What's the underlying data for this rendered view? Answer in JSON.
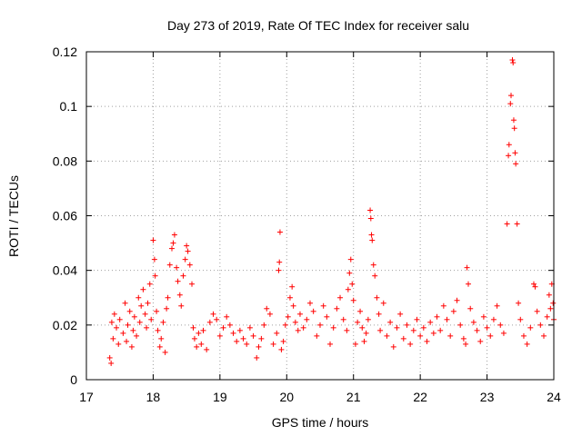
{
  "chart_data": {
    "type": "scatter",
    "title": "Day 273 of 2019, Rate Of TEC Index for receiver salu",
    "xlabel": "GPS time / hours",
    "ylabel": "ROTI / TECUs",
    "xlim": [
      17,
      24
    ],
    "ylim": [
      0,
      0.12
    ],
    "xticks": [
      17,
      18,
      19,
      20,
      21,
      22,
      23,
      24
    ],
    "yticks": [
      0,
      0.02,
      0.04,
      0.06,
      0.08,
      0.1,
      0.12
    ],
    "xtick_labels": [
      "17",
      "18",
      "19",
      "20",
      "21",
      "22",
      "23",
      "24"
    ],
    "ytick_labels": [
      "0",
      "0.02",
      "0.04",
      "0.06",
      "0.08",
      "0.1",
      "0.12"
    ],
    "grid": true,
    "marker": "+",
    "color": "#ff0000",
    "series": [
      {
        "name": "ROTI",
        "points": [
          [
            17.35,
            0.008
          ],
          [
            17.37,
            0.006
          ],
          [
            17.38,
            0.021
          ],
          [
            17.4,
            0.015
          ],
          [
            17.42,
            0.024
          ],
          [
            17.45,
            0.019
          ],
          [
            17.48,
            0.013
          ],
          [
            17.5,
            0.022
          ],
          [
            17.55,
            0.017
          ],
          [
            17.58,
            0.028
          ],
          [
            17.6,
            0.014
          ],
          [
            17.62,
            0.02
          ],
          [
            17.65,
            0.025
          ],
          [
            17.68,
            0.012
          ],
          [
            17.7,
            0.018
          ],
          [
            17.72,
            0.023
          ],
          [
            17.75,
            0.016
          ],
          [
            17.78,
            0.03
          ],
          [
            17.8,
            0.021
          ],
          [
            17.82,
            0.027
          ],
          [
            17.85,
            0.033
          ],
          [
            17.88,
            0.024
          ],
          [
            17.9,
            0.019
          ],
          [
            17.92,
            0.028
          ],
          [
            17.95,
            0.035
          ],
          [
            17.97,
            0.022
          ],
          [
            18.0,
            0.051
          ],
          [
            18.02,
            0.044
          ],
          [
            18.03,
            0.038
          ],
          [
            18.05,
            0.025
          ],
          [
            18.07,
            0.018
          ],
          [
            18.1,
            0.012
          ],
          [
            18.12,
            0.015
          ],
          [
            18.15,
            0.021
          ],
          [
            18.18,
            0.01
          ],
          [
            18.2,
            0.026
          ],
          [
            18.22,
            0.03
          ],
          [
            18.25,
            0.042
          ],
          [
            18.28,
            0.048
          ],
          [
            18.3,
            0.05
          ],
          [
            18.32,
            0.053
          ],
          [
            18.35,
            0.041
          ],
          [
            18.37,
            0.036
          ],
          [
            18.4,
            0.031
          ],
          [
            18.42,
            0.027
          ],
          [
            18.45,
            0.038
          ],
          [
            18.48,
            0.044
          ],
          [
            18.5,
            0.049
          ],
          [
            18.52,
            0.047
          ],
          [
            18.55,
            0.042
          ],
          [
            18.58,
            0.035
          ],
          [
            18.6,
            0.019
          ],
          [
            18.62,
            0.015
          ],
          [
            18.65,
            0.012
          ],
          [
            18.68,
            0.017
          ],
          [
            18.72,
            0.013
          ],
          [
            18.75,
            0.018
          ],
          [
            18.8,
            0.011
          ],
          [
            18.85,
            0.021
          ],
          [
            18.9,
            0.024
          ],
          [
            18.95,
            0.022
          ],
          [
            19.0,
            0.016
          ],
          [
            19.05,
            0.019
          ],
          [
            19.1,
            0.023
          ],
          [
            19.15,
            0.02
          ],
          [
            19.2,
            0.017
          ],
          [
            19.25,
            0.014
          ],
          [
            19.3,
            0.018
          ],
          [
            19.35,
            0.015
          ],
          [
            19.4,
            0.013
          ],
          [
            19.45,
            0.019
          ],
          [
            19.5,
            0.016
          ],
          [
            19.55,
            0.008
          ],
          [
            19.58,
            0.012
          ],
          [
            19.62,
            0.015
          ],
          [
            19.66,
            0.02
          ],
          [
            19.7,
            0.026
          ],
          [
            19.75,
            0.024
          ],
          [
            19.8,
            0.013
          ],
          [
            19.85,
            0.017
          ],
          [
            19.88,
            0.04
          ],
          [
            19.89,
            0.043
          ],
          [
            19.9,
            0.054
          ],
          [
            19.92,
            0.011
          ],
          [
            19.95,
            0.014
          ],
          [
            19.98,
            0.02
          ],
          [
            20.02,
            0.023
          ],
          [
            20.05,
            0.03
          ],
          [
            20.08,
            0.034
          ],
          [
            20.1,
            0.027
          ],
          [
            20.13,
            0.021
          ],
          [
            20.17,
            0.018
          ],
          [
            20.2,
            0.024
          ],
          [
            20.25,
            0.019
          ],
          [
            20.3,
            0.022
          ],
          [
            20.35,
            0.028
          ],
          [
            20.4,
            0.025
          ],
          [
            20.45,
            0.016
          ],
          [
            20.5,
            0.02
          ],
          [
            20.55,
            0.027
          ],
          [
            20.6,
            0.023
          ],
          [
            20.65,
            0.013
          ],
          [
            20.7,
            0.019
          ],
          [
            20.75,
            0.026
          ],
          [
            20.8,
            0.03
          ],
          [
            20.85,
            0.022
          ],
          [
            20.9,
            0.018
          ],
          [
            20.92,
            0.033
          ],
          [
            20.94,
            0.039
          ],
          [
            20.96,
            0.044
          ],
          [
            20.98,
            0.035
          ],
          [
            21.0,
            0.029
          ],
          [
            21.03,
            0.013
          ],
          [
            21.06,
            0.021
          ],
          [
            21.1,
            0.025
          ],
          [
            21.13,
            0.019
          ],
          [
            21.16,
            0.014
          ],
          [
            21.19,
            0.017
          ],
          [
            21.22,
            0.022
          ],
          [
            21.25,
            0.062
          ],
          [
            21.26,
            0.059
          ],
          [
            21.27,
            0.053
          ],
          [
            21.28,
            0.051
          ],
          [
            21.3,
            0.042
          ],
          [
            21.32,
            0.038
          ],
          [
            21.35,
            0.03
          ],
          [
            21.38,
            0.024
          ],
          [
            21.4,
            0.018
          ],
          [
            21.45,
            0.028
          ],
          [
            21.5,
            0.016
          ],
          [
            21.55,
            0.021
          ],
          [
            21.6,
            0.012
          ],
          [
            21.65,
            0.019
          ],
          [
            21.7,
            0.024
          ],
          [
            21.75,
            0.015
          ],
          [
            21.8,
            0.02
          ],
          [
            21.85,
            0.013
          ],
          [
            21.9,
            0.018
          ],
          [
            21.95,
            0.022
          ],
          [
            22.0,
            0.016
          ],
          [
            22.05,
            0.019
          ],
          [
            22.1,
            0.014
          ],
          [
            22.15,
            0.021
          ],
          [
            22.2,
            0.017
          ],
          [
            22.25,
            0.023
          ],
          [
            22.3,
            0.018
          ],
          [
            22.35,
            0.027
          ],
          [
            22.4,
            0.022
          ],
          [
            22.45,
            0.016
          ],
          [
            22.5,
            0.025
          ],
          [
            22.55,
            0.029
          ],
          [
            22.6,
            0.02
          ],
          [
            22.65,
            0.015
          ],
          [
            22.68,
            0.013
          ],
          [
            22.7,
            0.041
          ],
          [
            22.72,
            0.035
          ],
          [
            22.75,
            0.026
          ],
          [
            22.8,
            0.021
          ],
          [
            22.85,
            0.018
          ],
          [
            22.9,
            0.014
          ],
          [
            22.95,
            0.023
          ],
          [
            23.0,
            0.019
          ],
          [
            23.05,
            0.016
          ],
          [
            23.1,
            0.022
          ],
          [
            23.15,
            0.027
          ],
          [
            23.2,
            0.02
          ],
          [
            23.25,
            0.017
          ],
          [
            23.3,
            0.057
          ],
          [
            23.32,
            0.082
          ],
          [
            23.33,
            0.086
          ],
          [
            23.35,
            0.101
          ],
          [
            23.36,
            0.104
          ],
          [
            23.38,
            0.117
          ],
          [
            23.39,
            0.116
          ],
          [
            23.4,
            0.095
          ],
          [
            23.41,
            0.092
          ],
          [
            23.42,
            0.083
          ],
          [
            23.43,
            0.079
          ],
          [
            23.45,
            0.057
          ],
          [
            23.47,
            0.028
          ],
          [
            23.5,
            0.022
          ],
          [
            23.55,
            0.016
          ],
          [
            23.6,
            0.013
          ],
          [
            23.65,
            0.019
          ],
          [
            23.7,
            0.035
          ],
          [
            23.72,
            0.034
          ],
          [
            23.75,
            0.025
          ],
          [
            23.8,
            0.02
          ],
          [
            23.85,
            0.016
          ],
          [
            23.9,
            0.023
          ],
          [
            23.93,
            0.031
          ],
          [
            23.95,
            0.026
          ],
          [
            23.97,
            0.035
          ],
          [
            23.99,
            0.028
          ],
          [
            24.0,
            0.022
          ]
        ]
      }
    ]
  }
}
